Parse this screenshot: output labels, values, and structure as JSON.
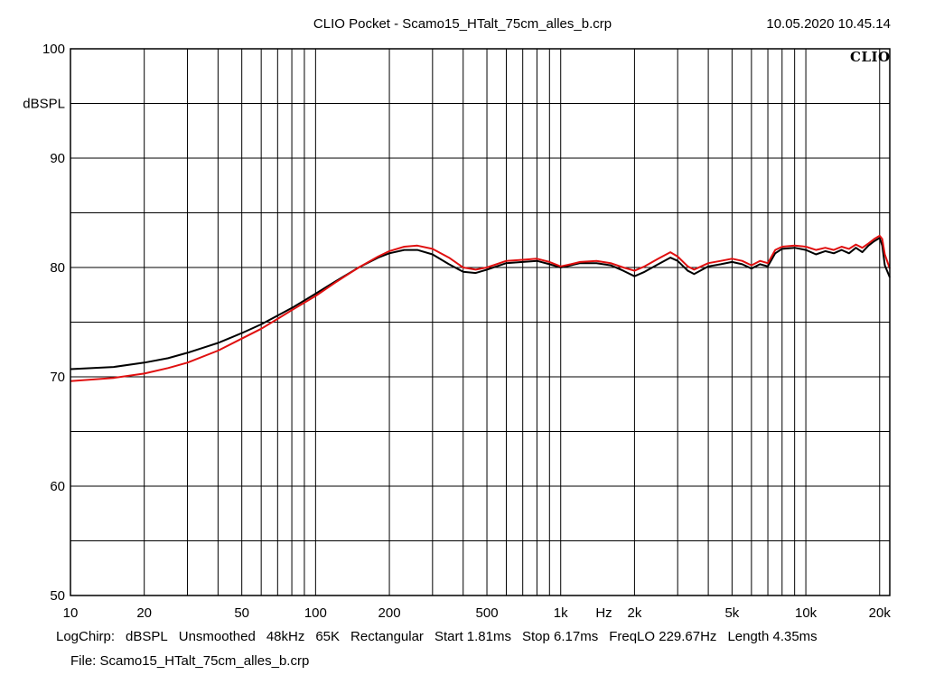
{
  "header": {
    "title": "CLIO Pocket - Scamo15_HTalt_75cm_alles_b.crp",
    "timestamp": "10.05.2020 10.45.14",
    "logo": "CLIO"
  },
  "settings": {
    "items": [
      "LogChirp:",
      "dBSPL",
      "Unsmoothed",
      "48kHz",
      "65K",
      "Rectangular",
      "Start 1.81ms",
      "Stop 6.17ms",
      "FreqLO 229.67Hz",
      "Length 4.35ms"
    ]
  },
  "file": "File: Scamo15_HTalt_75cm_alles_b.crp",
  "chart_data": {
    "type": "line",
    "title": "CLIO Pocket - Scamo15_HTalt_75cm_alles_b.crp",
    "xlabel": "Hz",
    "ylabel": "dBSPL",
    "xscale": "log",
    "xlim": [
      10,
      22000
    ],
    "ylim": [
      50,
      100
    ],
    "grid": true,
    "x_ticks": [
      {
        "value": 10,
        "label": "10"
      },
      {
        "value": 20,
        "label": "20"
      },
      {
        "value": 50,
        "label": "50"
      },
      {
        "value": 100,
        "label": "100"
      },
      {
        "value": 200,
        "label": "200"
      },
      {
        "value": 500,
        "label": "500"
      },
      {
        "value": 1000,
        "label": "1k"
      },
      {
        "value": 2000,
        "label": "2k"
      },
      {
        "value": 5000,
        "label": "5k"
      },
      {
        "value": 10000,
        "label": "10k"
      },
      {
        "value": 20000,
        "label": "20k"
      }
    ],
    "x_unit_label": {
      "value": 1500,
      "label": "Hz"
    },
    "y_ticks": [
      {
        "value": 100,
        "label": "100"
      },
      {
        "value": 90,
        "label": "90"
      },
      {
        "value": 80,
        "label": "80"
      },
      {
        "value": 70,
        "label": "70"
      },
      {
        "value": 60,
        "label": "60"
      },
      {
        "value": 50,
        "label": "50"
      }
    ],
    "y_unit_label": {
      "value": 95,
      "label": "dBSPL"
    },
    "series": [
      {
        "color": "#000000",
        "points": [
          [
            10,
            70.7
          ],
          [
            15,
            70.9
          ],
          [
            20,
            71.3
          ],
          [
            25,
            71.7
          ],
          [
            30,
            72.2
          ],
          [
            40,
            73.1
          ],
          [
            50,
            74.0
          ],
          [
            60,
            74.8
          ],
          [
            70,
            75.6
          ],
          [
            80,
            76.3
          ],
          [
            100,
            77.6
          ],
          [
            120,
            78.7
          ],
          [
            150,
            80.0
          ],
          [
            180,
            80.9
          ],
          [
            200,
            81.3
          ],
          [
            230,
            81.6
          ],
          [
            260,
            81.6
          ],
          [
            300,
            81.2
          ],
          [
            350,
            80.3
          ],
          [
            400,
            79.6
          ],
          [
            450,
            79.5
          ],
          [
            500,
            79.8
          ],
          [
            600,
            80.4
          ],
          [
            700,
            80.5
          ],
          [
            800,
            80.6
          ],
          [
            900,
            80.3
          ],
          [
            1000,
            80.0
          ],
          [
            1100,
            80.2
          ],
          [
            1200,
            80.4
          ],
          [
            1400,
            80.4
          ],
          [
            1600,
            80.2
          ],
          [
            1800,
            79.7
          ],
          [
            2000,
            79.2
          ],
          [
            2200,
            79.6
          ],
          [
            2500,
            80.3
          ],
          [
            2800,
            80.9
          ],
          [
            3000,
            80.6
          ],
          [
            3300,
            79.7
          ],
          [
            3500,
            79.4
          ],
          [
            4000,
            80.1
          ],
          [
            4500,
            80.3
          ],
          [
            5000,
            80.5
          ],
          [
            5500,
            80.3
          ],
          [
            6000,
            79.9
          ],
          [
            6500,
            80.3
          ],
          [
            7000,
            80.1
          ],
          [
            7500,
            81.3
          ],
          [
            8000,
            81.7
          ],
          [
            9000,
            81.8
          ],
          [
            10000,
            81.6
          ],
          [
            11000,
            81.2
          ],
          [
            12000,
            81.5
          ],
          [
            13000,
            81.3
          ],
          [
            14000,
            81.6
          ],
          [
            15000,
            81.3
          ],
          [
            16000,
            81.8
          ],
          [
            17000,
            81.4
          ],
          [
            18000,
            82.0
          ],
          [
            19000,
            82.4
          ],
          [
            20000,
            82.7
          ],
          [
            20500,
            82.0
          ],
          [
            21000,
            80.2
          ],
          [
            22000,
            79.1
          ]
        ]
      },
      {
        "color": "#e01010",
        "points": [
          [
            10,
            69.6
          ],
          [
            15,
            69.9
          ],
          [
            20,
            70.3
          ],
          [
            25,
            70.8
          ],
          [
            30,
            71.3
          ],
          [
            40,
            72.4
          ],
          [
            50,
            73.5
          ],
          [
            60,
            74.4
          ],
          [
            70,
            75.3
          ],
          [
            80,
            76.1
          ],
          [
            100,
            77.4
          ],
          [
            120,
            78.6
          ],
          [
            150,
            80.0
          ],
          [
            180,
            81.0
          ],
          [
            200,
            81.5
          ],
          [
            230,
            81.9
          ],
          [
            260,
            82.0
          ],
          [
            300,
            81.7
          ],
          [
            350,
            80.9
          ],
          [
            400,
            80.0
          ],
          [
            450,
            79.8
          ],
          [
            500,
            80.0
          ],
          [
            600,
            80.6
          ],
          [
            700,
            80.7
          ],
          [
            800,
            80.8
          ],
          [
            900,
            80.5
          ],
          [
            1000,
            80.1
          ],
          [
            1100,
            80.3
          ],
          [
            1200,
            80.5
          ],
          [
            1400,
            80.6
          ],
          [
            1600,
            80.4
          ],
          [
            1800,
            80.0
          ],
          [
            2000,
            79.7
          ],
          [
            2200,
            80.1
          ],
          [
            2500,
            80.8
          ],
          [
            2800,
            81.4
          ],
          [
            3000,
            81.0
          ],
          [
            3300,
            80.1
          ],
          [
            3500,
            79.8
          ],
          [
            4000,
            80.4
          ],
          [
            4500,
            80.6
          ],
          [
            5000,
            80.8
          ],
          [
            5500,
            80.6
          ],
          [
            6000,
            80.2
          ],
          [
            6500,
            80.6
          ],
          [
            7000,
            80.4
          ],
          [
            7500,
            81.6
          ],
          [
            8000,
            81.9
          ],
          [
            9000,
            82.0
          ],
          [
            10000,
            81.9
          ],
          [
            11000,
            81.6
          ],
          [
            12000,
            81.8
          ],
          [
            13000,
            81.6
          ],
          [
            14000,
            81.9
          ],
          [
            15000,
            81.7
          ],
          [
            16000,
            82.1
          ],
          [
            17000,
            81.8
          ],
          [
            18000,
            82.2
          ],
          [
            19000,
            82.6
          ],
          [
            20000,
            82.9
          ],
          [
            20500,
            82.6
          ],
          [
            21000,
            81.2
          ],
          [
            22000,
            79.9
          ]
        ]
      }
    ]
  }
}
